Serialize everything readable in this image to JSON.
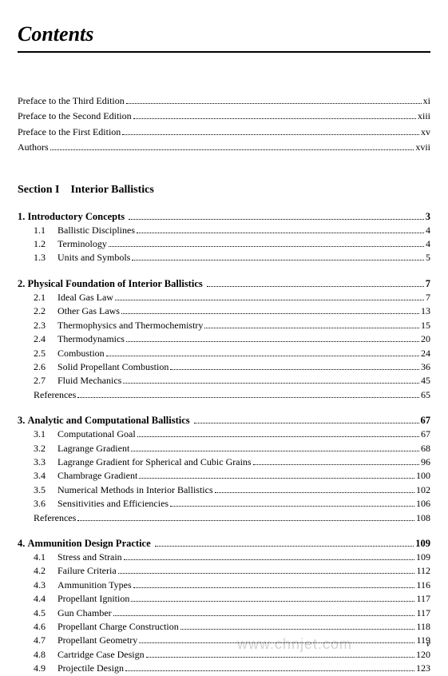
{
  "page": {
    "title": "Contents",
    "section_heading": "Section I Interior Ballistics",
    "bottom_page_number": "v",
    "watermark": "www.chnjet.com"
  },
  "front_matter": [
    {
      "label": "Preface to the Third Edition",
      "page": "xi"
    },
    {
      "label": "Preface to the Second Edition",
      "page": "xiii"
    },
    {
      "label": "Preface to the First Edition",
      "page": "xv"
    },
    {
      "label": "Authors",
      "page": "xvii"
    }
  ],
  "chapters": [
    {
      "num": "1.",
      "title": "Introductory Concepts",
      "page": "3",
      "subs": [
        {
          "num": "1.1",
          "title": "Ballistic Disciplines",
          "page": "4"
        },
        {
          "num": "1.2",
          "title": "Terminology",
          "page": "4"
        },
        {
          "num": "1.3",
          "title": "Units and Symbols",
          "page": "5"
        }
      ],
      "refs": null
    },
    {
      "num": "2.",
      "title": "Physical Foundation of Interior Ballistics",
      "page": "7",
      "subs": [
        {
          "num": "2.1",
          "title": "Ideal Gas Law",
          "page": "7"
        },
        {
          "num": "2.2",
          "title": "Other Gas Laws",
          "page": "13"
        },
        {
          "num": "2.3",
          "title": "Thermophysics and Thermochemistry",
          "page": "15"
        },
        {
          "num": "2.4",
          "title": "Thermodynamics",
          "page": "20"
        },
        {
          "num": "2.5",
          "title": "Combustion",
          "page": "24"
        },
        {
          "num": "2.6",
          "title": "Solid Propellant Combustion",
          "page": "36"
        },
        {
          "num": "2.7",
          "title": "Fluid Mechanics",
          "page": "45"
        }
      ],
      "refs": {
        "label": "References",
        "page": "65"
      }
    },
    {
      "num": "3.",
      "title": "Analytic and Computational Ballistics",
      "page": "67",
      "subs": [
        {
          "num": "3.1",
          "title": "Computational Goal",
          "page": "67"
        },
        {
          "num": "3.2",
          "title": "Lagrange Gradient",
          "page": "68"
        },
        {
          "num": "3.3",
          "title": "Lagrange Gradient for Spherical and Cubic Grains",
          "page": "96"
        },
        {
          "num": "3.4",
          "title": "Chambrage Gradient",
          "page": "100"
        },
        {
          "num": "3.5",
          "title": "Numerical Methods in Interior Ballistics",
          "page": "102"
        },
        {
          "num": "3.6",
          "title": "Sensitivities and Efficiencies",
          "page": "106"
        }
      ],
      "refs": {
        "label": "References",
        "page": "108"
      }
    },
    {
      "num": "4.",
      "title": "Ammunition Design Practice",
      "page": "109",
      "subs": [
        {
          "num": "4.1",
          "title": "Stress and Strain",
          "page": "109"
        },
        {
          "num": "4.2",
          "title": "Failure Criteria",
          "page": "112"
        },
        {
          "num": "4.3",
          "title": "Ammunition Types",
          "page": "116"
        },
        {
          "num": "4.4",
          "title": "Propellant Ignition",
          "page": "117"
        },
        {
          "num": "4.5",
          "title": "Gun Chamber",
          "page": "117"
        },
        {
          "num": "4.6",
          "title": "Propellant Charge Construction",
          "page": "118"
        },
        {
          "num": "4.7",
          "title": "Propellant Geometry",
          "page": "119"
        },
        {
          "num": "4.8",
          "title": "Cartridge Case Design",
          "page": "120"
        },
        {
          "num": "4.9",
          "title": "Projectile Design",
          "page": "123"
        }
      ],
      "refs": null
    }
  ]
}
